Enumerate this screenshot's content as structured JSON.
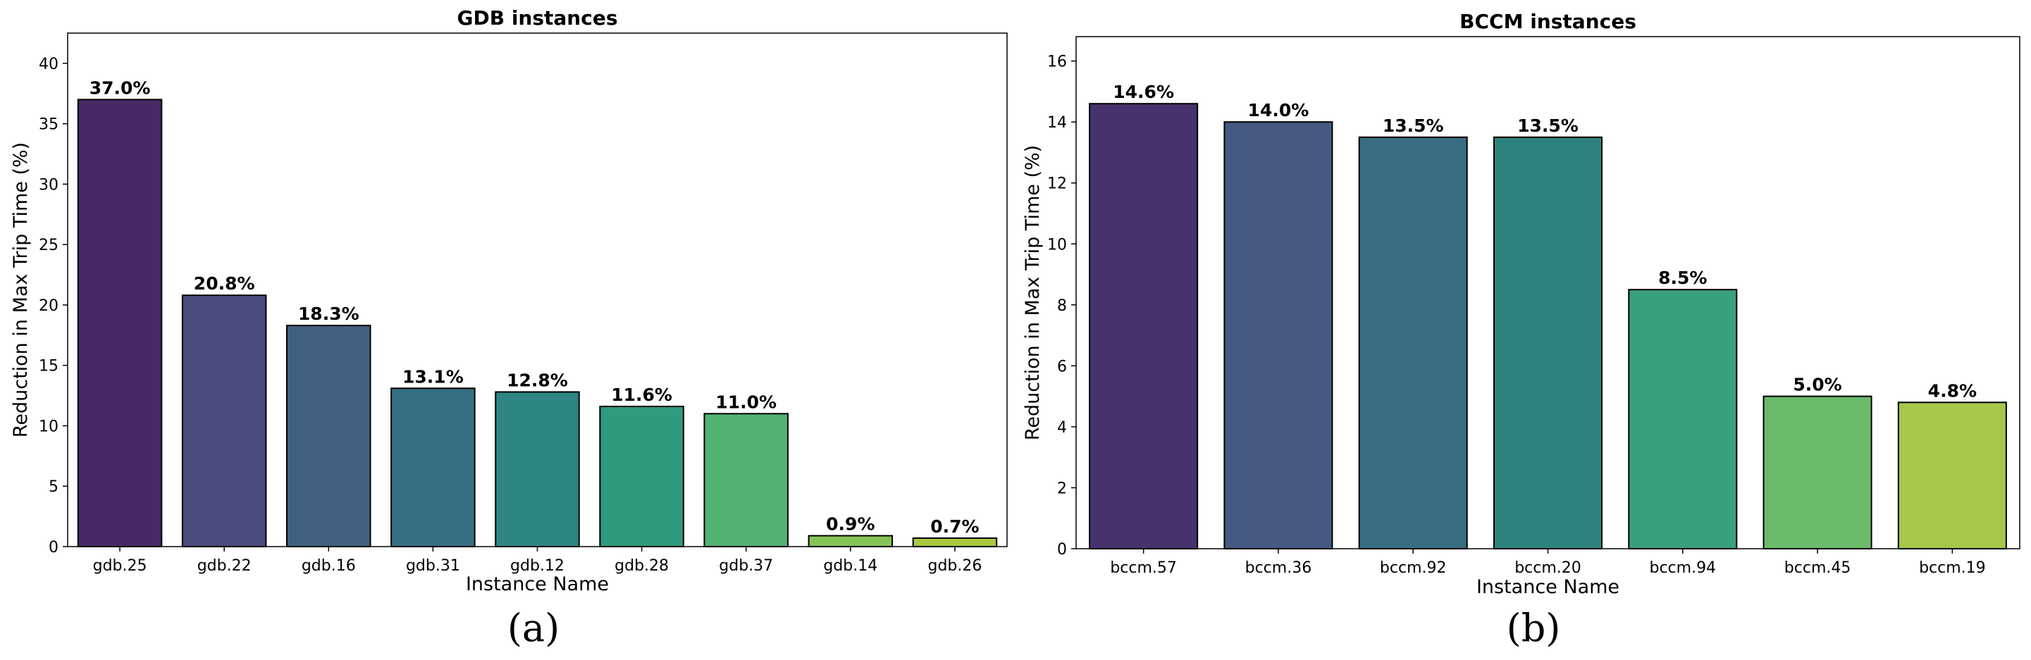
{
  "figure": {
    "panel_labels": [
      "(a)",
      "(b)"
    ]
  },
  "chart_data": [
    {
      "type": "bar",
      "title": "GDB instances",
      "xlabel": "Instance Name",
      "ylabel": "Reduction in Max Trip Time (%)",
      "categories": [
        "gdb.25",
        "gdb.22",
        "gdb.16",
        "gdb.31",
        "gdb.12",
        "gdb.28",
        "gdb.37",
        "gdb.14",
        "gdb.26"
      ],
      "values": [
        37.0,
        20.8,
        18.3,
        13.1,
        12.8,
        11.6,
        11.0,
        0.9,
        0.7
      ],
      "value_labels": [
        "37.0%",
        "20.8%",
        "18.3%",
        "13.1%",
        "12.8%",
        "11.6%",
        "11.0%",
        "0.9%",
        "0.7%"
      ],
      "colors": [
        "#472a65",
        "#4a4a7c",
        "#416081",
        "#366f83",
        "#2d8682",
        "#2f9b7c",
        "#53b273",
        "#84c457",
        "#a9c83f"
      ],
      "ylim": [
        0,
        42.5
      ],
      "yticks": [
        0,
        5,
        10,
        15,
        20,
        25,
        30,
        35,
        40
      ],
      "ytick_labels": [
        "0",
        "5",
        "10",
        "15",
        "20",
        "25",
        "30",
        "35",
        "40"
      ],
      "grid": false
    },
    {
      "type": "bar",
      "title": "BCCM instances",
      "xlabel": "Instance Name",
      "ylabel": "Reduction in Max Trip Time (%)",
      "categories": [
        "bccm.57",
        "bccm.36",
        "bccm.92",
        "bccm.20",
        "bccm.94",
        "bccm.45",
        "bccm.19"
      ],
      "values": [
        14.6,
        14.0,
        13.5,
        13.5,
        8.5,
        5.0,
        4.8
      ],
      "value_labels": [
        "14.6%",
        "14.0%",
        "13.5%",
        "13.5%",
        "8.5%",
        "5.0%",
        "4.8%"
      ],
      "colors": [
        "#47326d",
        "#465a84",
        "#396e82",
        "#2d827e",
        "#3a9f7c",
        "#6bbb6b",
        "#a5c84a"
      ],
      "ylim": [
        0,
        16.8
      ],
      "yticks": [
        0,
        2,
        4,
        6,
        8,
        10,
        12,
        14,
        16
      ],
      "ytick_labels": [
        "0",
        "2",
        "4",
        "6",
        "8",
        "10",
        "12",
        "14",
        "16"
      ],
      "grid": false
    }
  ]
}
